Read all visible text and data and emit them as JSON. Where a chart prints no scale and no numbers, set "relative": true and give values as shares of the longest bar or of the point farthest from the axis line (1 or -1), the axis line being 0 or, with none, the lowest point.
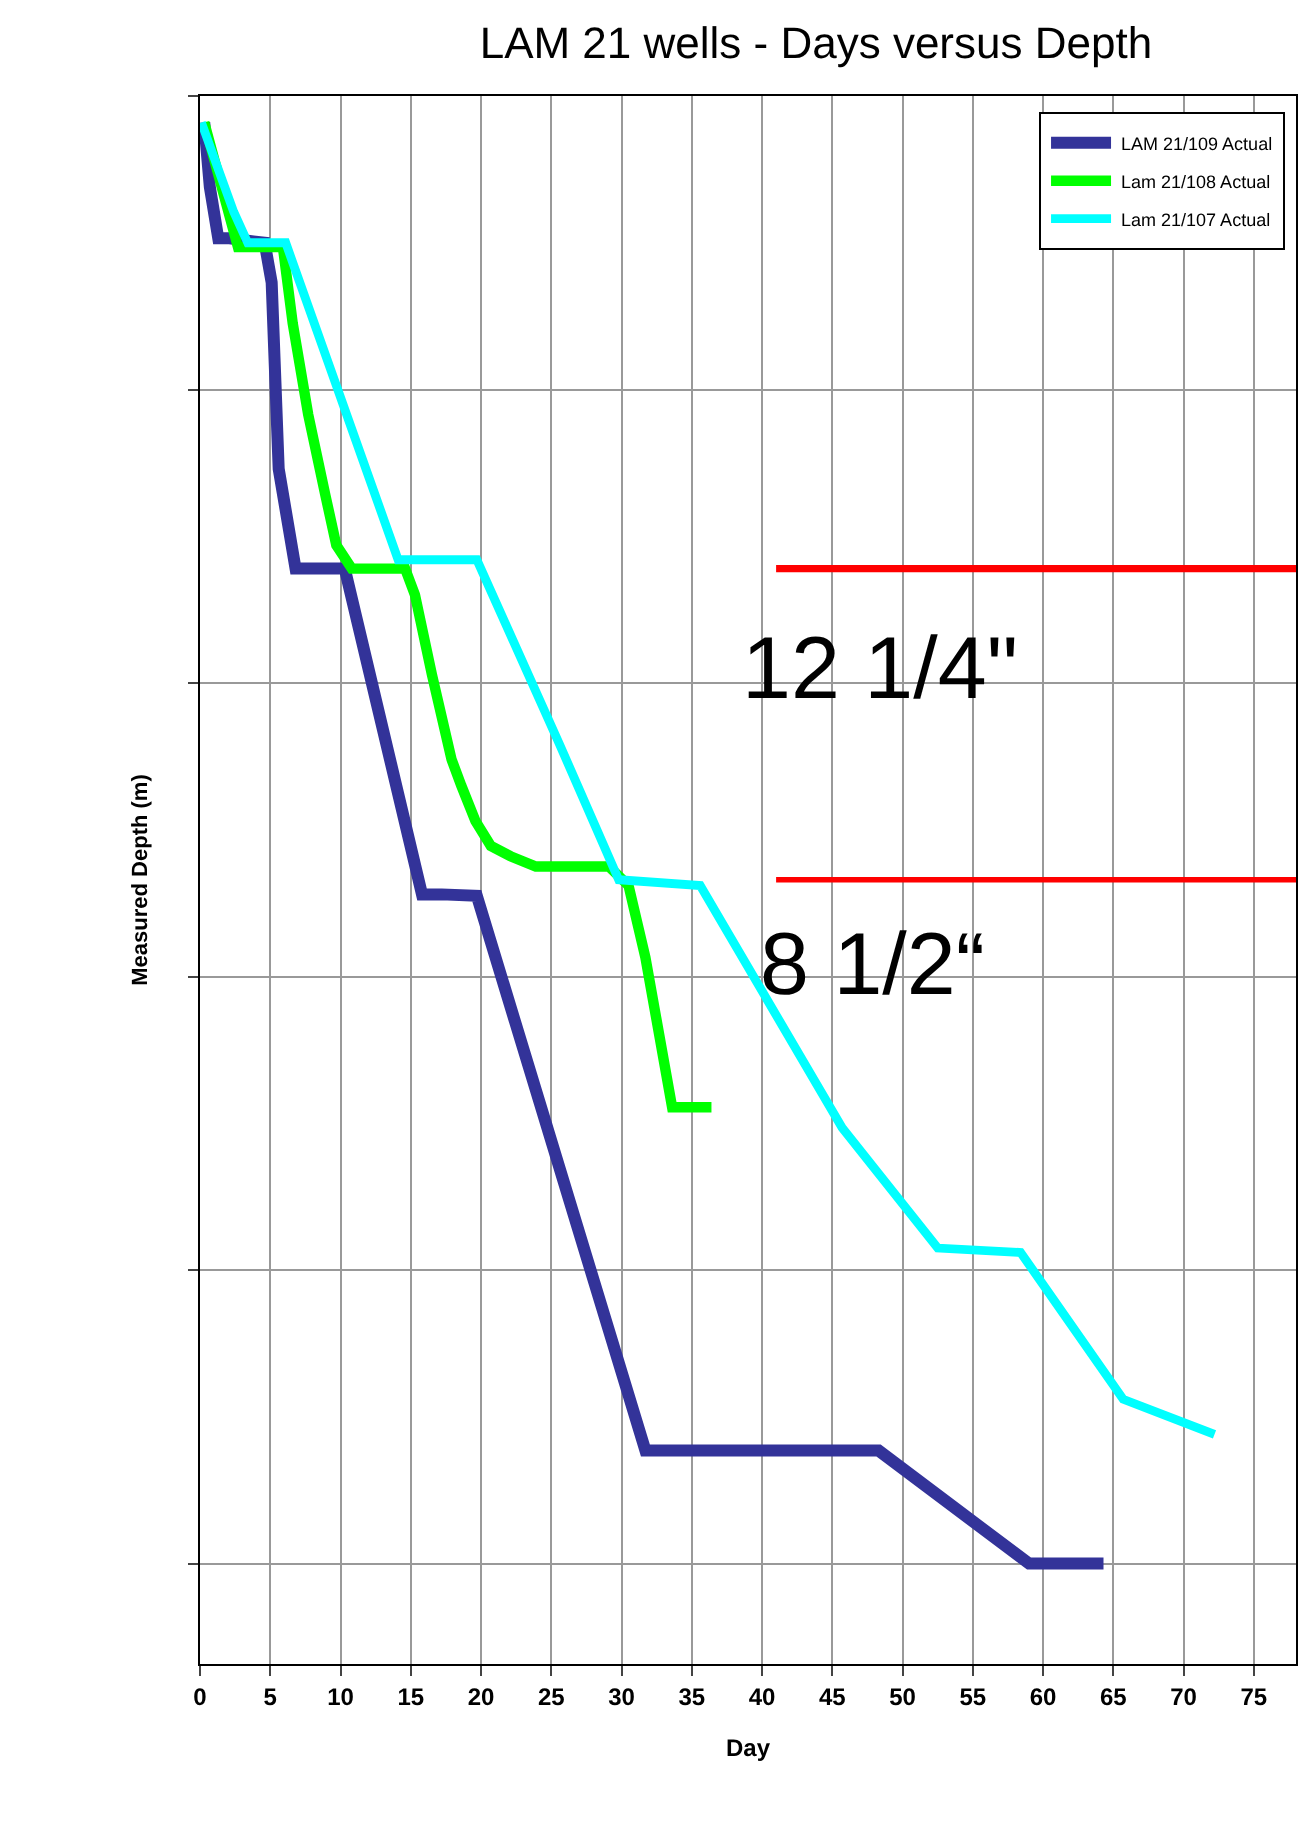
{
  "chart_data": {
    "type": "line",
    "title": "LAM 21 wells - Days versus Depth",
    "xlabel": "Day",
    "ylabel": "Measured Depth (m)",
    "relative": true,
    "xlim": [
      0,
      78
    ],
    "xticks": [
      0,
      5,
      10,
      15,
      20,
      25,
      30,
      35,
      40,
      45,
      50,
      55,
      60,
      65,
      70,
      75
    ],
    "grid": true,
    "legend": "top right",
    "marker": "none",
    "line_style": "solid",
    "series": [
      {
        "name": "LAM 21/109 Actual",
        "color": "#333399",
        "x": [
          0.3,
          0.7,
          1.3,
          2.1,
          4.6,
          5.1,
          5.6,
          6.8,
          10.3,
          15.8,
          17.2,
          19.7,
          31.7,
          48.3,
          59.0,
          64.3
        ],
        "values": [
          -0.018,
          -0.062,
          -0.097,
          -0.097,
          -0.1,
          -0.127,
          -0.254,
          -0.322,
          -0.322,
          -0.544,
          -0.544,
          -0.545,
          -0.923,
          -0.923,
          -1,
          -1
        ]
      },
      {
        "name": "Lam 21/108 Actual",
        "color": "#00ff00",
        "x": [
          0.3,
          2.7,
          4.9,
          5.9,
          6.6,
          7.7,
          8.9,
          9.7,
          10.8,
          14.6,
          15.3,
          16.5,
          17.9,
          18.6,
          19.6,
          20.7,
          22.1,
          23.9,
          29.1,
          30.5,
          31.7,
          33.6,
          36.4
        ],
        "values": [
          -0.018,
          -0.103,
          -0.103,
          -0.103,
          -0.155,
          -0.217,
          -0.271,
          -0.306,
          -0.322,
          -0.322,
          -0.34,
          -0.394,
          -0.452,
          -0.47,
          -0.494,
          -0.511,
          -0.518,
          -0.525,
          -0.525,
          -0.538,
          -0.587,
          -0.689,
          -0.689
        ]
      },
      {
        "name": "Lam 21/107 Actual",
        "color": "#00ffff",
        "x": [
          0.1,
          2.4,
          3.4,
          6.1,
          14.1,
          19.7,
          25.6,
          29.8,
          35.6,
          45.7,
          52.5,
          58.4,
          65.7,
          72.2
        ],
        "values": [
          -0.018,
          -0.079,
          -0.1,
          -0.1,
          -0.316,
          -0.316,
          -0.442,
          -0.534,
          -0.538,
          -0.703,
          -0.785,
          -0.788,
          -0.888,
          -0.912
        ]
      },
      {
        "color": "#ff0000",
        "x": [
          41,
          78
        ],
        "values": [
          -0.322,
          -0.322
        ]
      },
      {
        "color": "#ff0000",
        "x": [
          41,
          78
        ],
        "values": [
          -0.534,
          -0.534
        ]
      }
    ],
    "annotations": [
      "12 1/4\"",
      "8 1/2“"
    ]
  }
}
